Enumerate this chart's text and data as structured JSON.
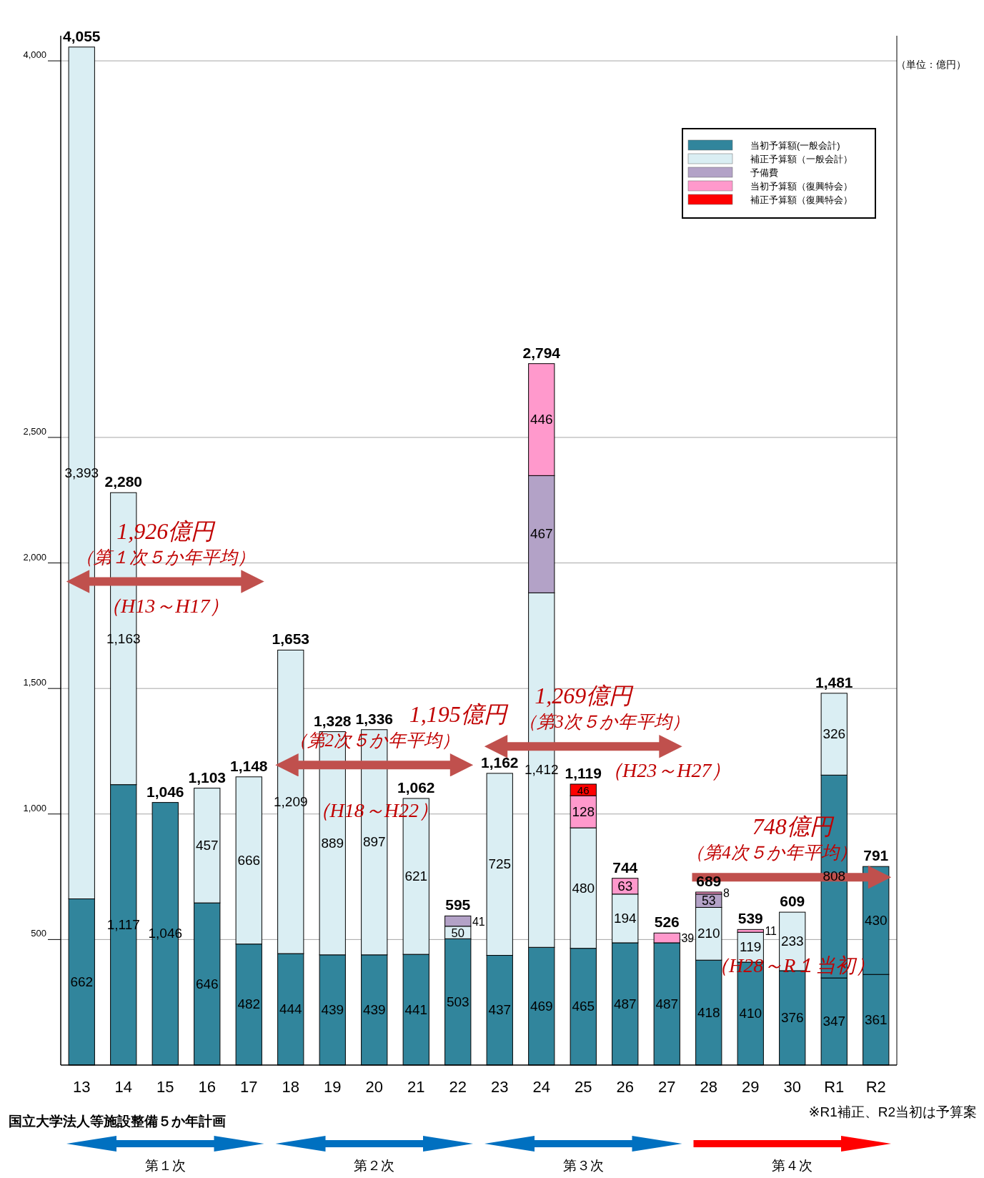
{
  "chart_data": {
    "type": "bar",
    "stacked": true,
    "categories": [
      "13",
      "14",
      "15",
      "16",
      "17",
      "18",
      "19",
      "20",
      "21",
      "22",
      "23",
      "24",
      "25",
      "26",
      "27",
      "28",
      "29",
      "30",
      "R1",
      "R2"
    ],
    "series": [
      {
        "name": "当初予算額(一般会計)",
        "color": "#31859c",
        "values": [
          662,
          1117,
          1046,
          646,
          482,
          444,
          439,
          439,
          441,
          503,
          437,
          469,
          465,
          487,
          487,
          418,
          410,
          376,
          347,
          361
        ],
        "value_labels": [
          "662",
          "1,117",
          "1,046",
          "646",
          "482",
          "444",
          "439",
          "439",
          "441",
          "503",
          "437",
          "469",
          "465",
          "487",
          "487",
          "418",
          "410",
          "376",
          "347",
          "361"
        ]
      },
      {
        "color": "#31859c",
        "values": [
          null,
          null,
          null,
          null,
          null,
          null,
          null,
          null,
          null,
          null,
          null,
          null,
          null,
          null,
          null,
          null,
          null,
          null,
          808,
          430
        ]
      },
      {
        "name": "補正予算額（一般会計）",
        "color": "#daeef3",
        "values": [
          3393,
          1163,
          null,
          457,
          666,
          1209,
          889,
          897,
          621,
          50,
          725,
          1412,
          480,
          194,
          null,
          210,
          119,
          233,
          326,
          null
        ],
        "value_labels": [
          "3,393",
          "1,163",
          null,
          "457",
          "666",
          "1,209",
          "889",
          "897",
          "621",
          "50",
          "725",
          "1,412",
          "480",
          "194",
          null,
          "210",
          "119",
          "233",
          "326",
          null
        ]
      },
      {
        "name": "予備費",
        "color": "#b3a2c7",
        "values": [
          null,
          null,
          null,
          null,
          null,
          null,
          null,
          null,
          null,
          41,
          null,
          467,
          null,
          null,
          null,
          53,
          null,
          null,
          null,
          null
        ]
      },
      {
        "name": "当初予算額（復興特会）",
        "color": "#ff99cc",
        "values": [
          null,
          null,
          null,
          null,
          null,
          null,
          null,
          null,
          null,
          null,
          null,
          446,
          128,
          63,
          39,
          8,
          11,
          null,
          null,
          null
        ]
      },
      {
        "name": "補正予算額（復興特会）",
        "color": "#ff0000",
        "values": [
          null,
          null,
          null,
          null,
          null,
          null,
          null,
          null,
          null,
          null,
          null,
          null,
          46,
          null,
          null,
          null,
          null,
          null,
          null,
          null
        ]
      }
    ],
    "totals": [
      "4,055",
      "2,280",
      "1,046",
      "1,103",
      "1,148",
      "1,653",
      "1,328",
      "1,336",
      "1,062",
      "595",
      "1,162",
      "2,794",
      "1,119",
      "744",
      "526",
      "689",
      "539",
      "609",
      "1,481",
      "791"
    ],
    "ylim": [
      0,
      4100
    ],
    "yticks": [
      500,
      {
        "value": 1000,
        "label": "1,000"
      },
      {
        "value": 1500,
        "label": "1,500"
      },
      {
        "value": 2000,
        "label": "2,000"
      },
      {
        "value": 2500,
        "label": "2,500"
      },
      {
        "value": 4000,
        "label": "4,000"
      }
    ],
    "grid": "y",
    "legend": "top right",
    "data_labels": true,
    "ref_lines": [
      {
        "axis": "y",
        "value": 1926,
        "label": "1,926億円",
        "color": "#c0504d"
      },
      {
        "axis": "y",
        "value": 1195,
        "label": "1,195億円",
        "color": "#c0504d"
      },
      {
        "axis": "y",
        "value": 1269,
        "label": "1,269億円",
        "color": "#c0504d"
      },
      {
        "axis": "y",
        "value": 748,
        "label": "748億円",
        "color": "#c0504d"
      }
    ],
    "annotations": [
      "（単位：億円）",
      "※R1補正、R2当初は予算案",
      "国立大学法人等施設整備５か年計画",
      "第１次",
      "第２次",
      "第３次",
      "第４次",
      "（第１次５か年平均）",
      "（H13～H17）",
      "（第2次５か年平均）",
      "（H18～H22）",
      "（第3次５か年平均）",
      "（H23～H27）",
      "（第4次５か年平均）",
      "（H28～R１当初）"
    ]
  }
}
